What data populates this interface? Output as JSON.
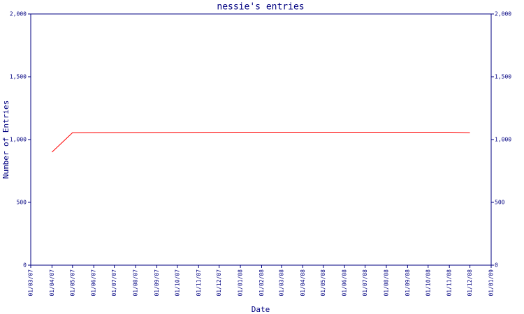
{
  "chart_data": {
    "type": "line",
    "title": "nessie's entries",
    "xlabel": "Date",
    "ylabel": "Number of Entries",
    "x": [
      "01/04/07",
      "01/05/07",
      "01/01/08",
      "01/11/08",
      "01/12/08"
    ],
    "series": [
      {
        "color": "#ff0000",
        "values": [
          900,
          1055,
          1058,
          1058,
          1055
        ]
      }
    ],
    "xlim": [
      "01/03/07",
      "01/01/09"
    ],
    "xticks": [
      "01/03/07",
      "01/04/07",
      "01/05/07",
      "01/06/07",
      "01/07/07",
      "01/08/07",
      "01/09/07",
      "01/10/07",
      "01/11/07",
      "01/12/07",
      "01/01/08",
      "01/02/08",
      "01/03/08",
      "01/04/08",
      "01/05/08",
      "01/06/08",
      "01/07/08",
      "01/08/08",
      "01/09/08",
      "01/10/08",
      "01/11/08",
      "01/12/08",
      "01/01/09"
    ],
    "ylim": [
      0,
      2000
    ],
    "yticks": [
      0,
      500,
      {
        "value": 1000,
        "label": "1,000"
      },
      {
        "value": 1500,
        "label": "1,500"
      },
      {
        "value": 2000,
        "label": "2,000"
      }
    ],
    "y2lim": [
      0,
      2000
    ],
    "y2ticks": [
      0,
      500,
      {
        "value": 1000,
        "label": "1,000"
      },
      {
        "value": 1500,
        "label": "1,500"
      },
      {
        "value": 2000,
        "label": "2,000"
      }
    ],
    "axis_color": "#000080"
  }
}
